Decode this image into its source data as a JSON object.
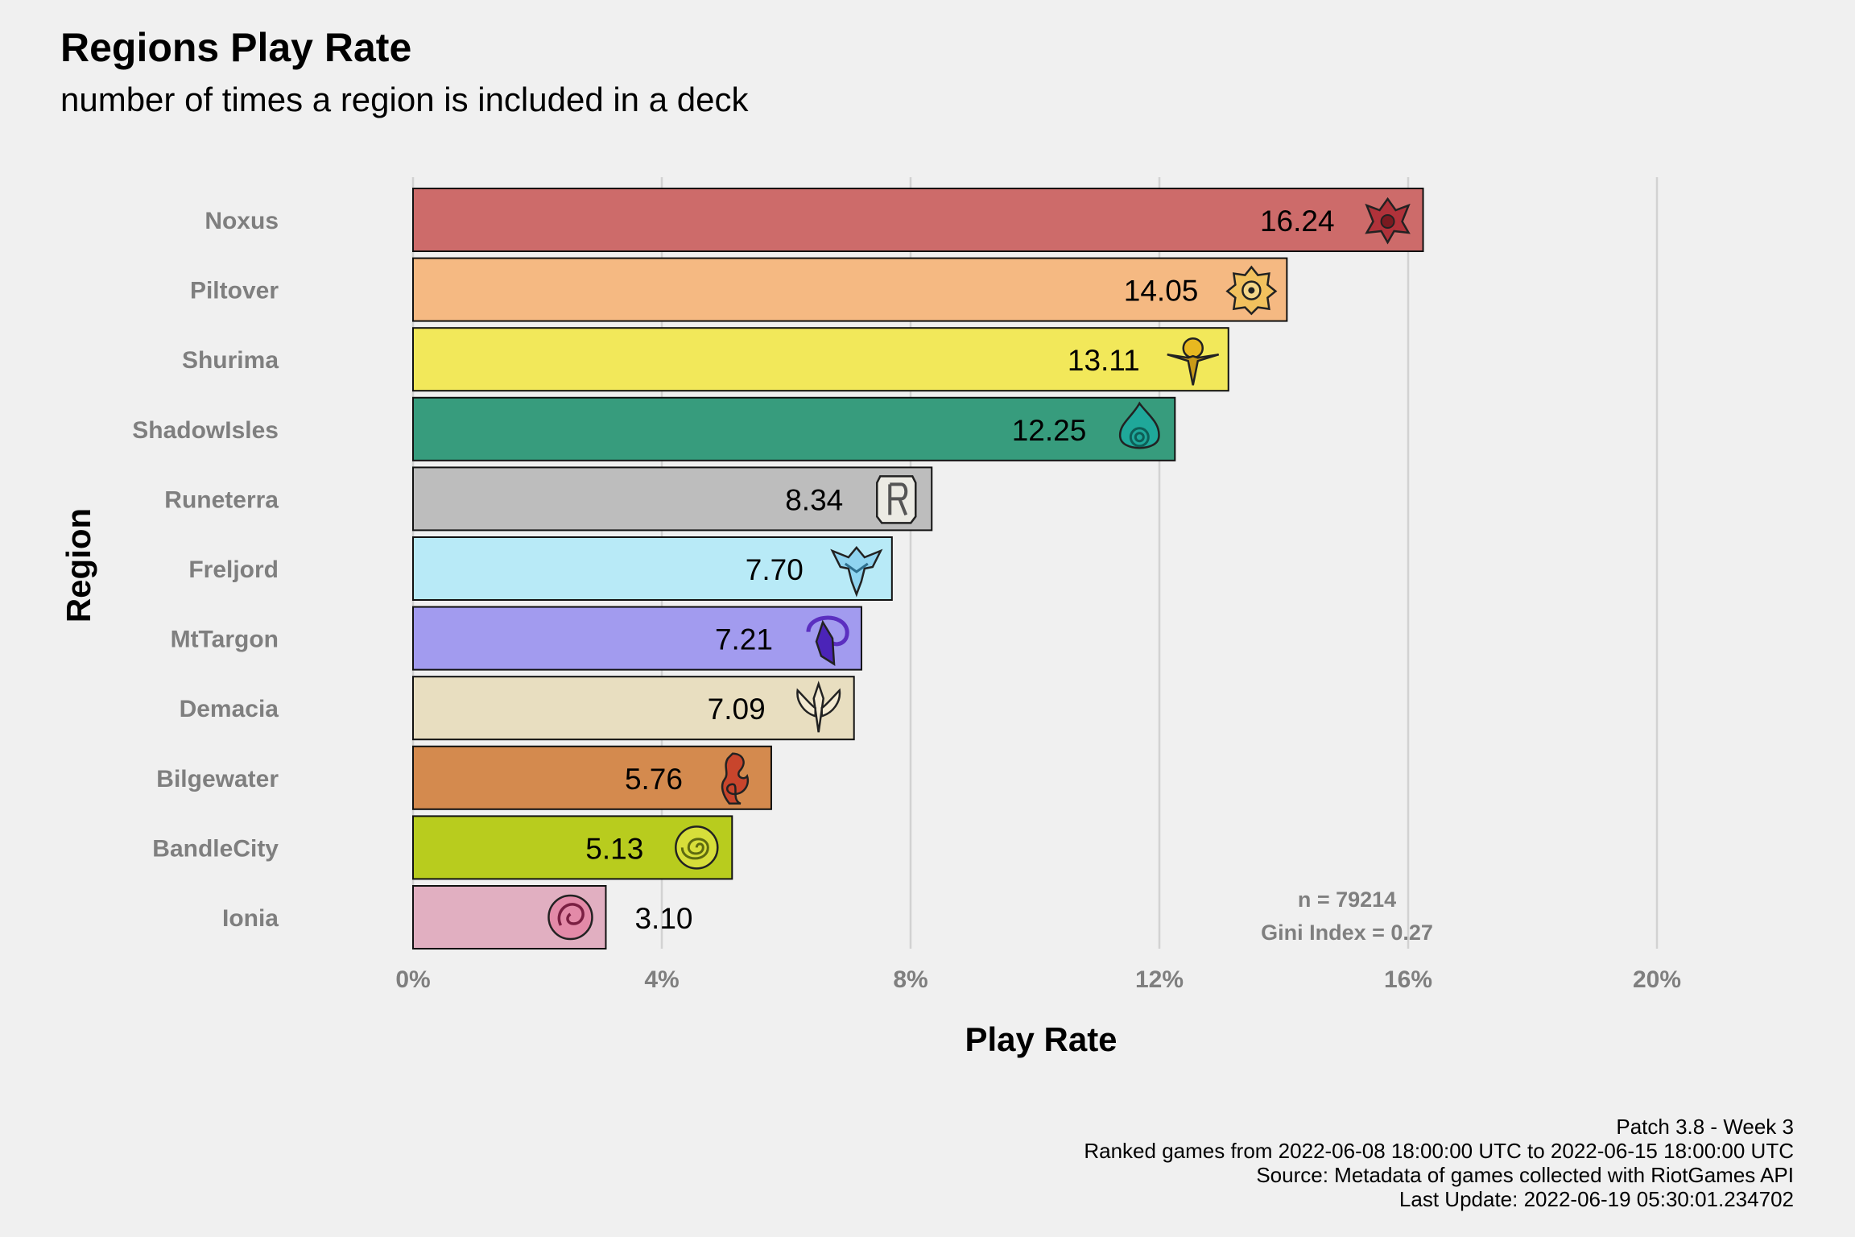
{
  "chart_data": {
    "type": "bar",
    "orientation": "horizontal",
    "title": "Regions Play Rate",
    "subtitle": "number of times a region is included in a deck",
    "xlabel": "Play Rate",
    "ylabel": "Region",
    "xlim": [
      0,
      20
    ],
    "x_ticks": [
      "0%",
      "4%",
      "8%",
      "12%",
      "16%",
      "20%"
    ],
    "grid": "vertical major lines",
    "categories": [
      "Noxus",
      "Piltover",
      "Shurima",
      "ShadowIsles",
      "Runeterra",
      "Freljord",
      "MtTargon",
      "Demacia",
      "Bilgewater",
      "BandleCity",
      "Ionia"
    ],
    "values": [
      16.24,
      14.05,
      13.11,
      12.25,
      8.34,
      7.7,
      7.21,
      7.09,
      5.76,
      5.13,
      3.1
    ],
    "value_labels": [
      "16.24",
      "14.05",
      "13.11",
      "12.25",
      "8.34",
      "7.70",
      "7.21",
      "7.09",
      "5.76",
      "5.13",
      "3.10"
    ],
    "bar_colors": [
      "#cd6b6a",
      "#f5b982",
      "#f2e85a",
      "#379c7d",
      "#bdbdbd",
      "#b8eaf7",
      "#a29bef",
      "#e8dec0",
      "#d48a4e",
      "#b8cc1e",
      "#e1afc1"
    ],
    "icons": [
      "noxus-emblem",
      "piltover-emblem",
      "shurima-emblem",
      "shadowisles-emblem",
      "runeterra-emblem",
      "freljord-emblem",
      "mttargon-emblem",
      "demacia-emblem",
      "bilgewater-emblem",
      "bandlecity-emblem",
      "ionia-emblem"
    ],
    "annotations": [
      "n = 79214",
      "Gini Index = 0.27"
    ]
  },
  "caption": {
    "line1": "Patch 3.8 - Week 3",
    "line2": "Ranked games from 2022-06-08 18:00:00 UTC to 2022-06-15 18:00:00 UTC",
    "line3": "Source: Metadata of games collected with RiotGames API",
    "line4": "Last Update: 2022-06-19 05:30:01.234702"
  }
}
